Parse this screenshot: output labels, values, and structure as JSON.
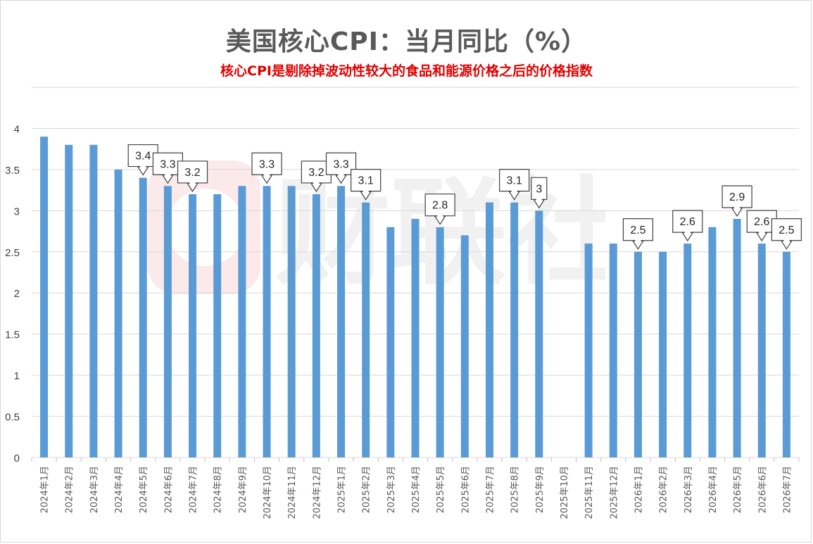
{
  "chart_data": {
    "type": "bar",
    "title": "美国核心CPI：当月同比（%）",
    "subtitle": "核心CPI是剔除掉波动性较大的食品和能源价格之后的价格指数",
    "categories": [
      "2024年1月",
      "2024年2月",
      "2024年3月",
      "2024年4月",
      "2024年5月",
      "2024年6月",
      "2024年7月",
      "2024年8月",
      "2024年9月",
      "2024年10月",
      "2024年11月",
      "2024年12月",
      "2025年1月",
      "2025年2月",
      "2025年3月",
      "2025年4月",
      "2025年5月",
      "2025年6月",
      "2025年7月",
      "2025年8月",
      "2025年9月",
      "2025年10月",
      "2025年11月",
      "2025年12月",
      "2026年1月",
      "2026年2月",
      "2026年3月",
      "2026年4月",
      "2026年5月",
      "2026年6月",
      "2026年7月"
    ],
    "values": [
      3.9,
      3.8,
      3.8,
      3.5,
      3.4,
      3.3,
      3.2,
      3.2,
      3.3,
      3.3,
      3.3,
      3.2,
      3.3,
      3.1,
      2.8,
      2.9,
      2.8,
      2.7,
      3.1,
      3.1,
      3.0,
      null,
      2.6,
      2.6,
      2.5,
      2.5,
      2.6,
      2.8,
      2.9,
      2.6,
      2.5
    ],
    "callout_labels": [
      null,
      null,
      null,
      null,
      "3.4",
      "3.3",
      "3.2",
      null,
      null,
      "3.3",
      null,
      "3.2",
      "3.3",
      "3.1",
      null,
      null,
      "2.8",
      null,
      null,
      "3.1",
      "3",
      null,
      null,
      null,
      "2.5",
      null,
      "2.6",
      null,
      "2.9",
      "2.6",
      "2.5"
    ],
    "ylim": [
      0,
      4.5
    ],
    "yticks": [
      "0",
      "0.5",
      "1",
      "1.5",
      "2",
      "2.5",
      "3",
      "3.5",
      "4"
    ],
    "xlabel": "",
    "ylabel": "",
    "grid": true,
    "legend": "none",
    "bar_color": "#5b9bd5",
    "grid_color": "#d9d9d9",
    "watermark_text": "财联社",
    "watermark_color": "#e8323c"
  }
}
